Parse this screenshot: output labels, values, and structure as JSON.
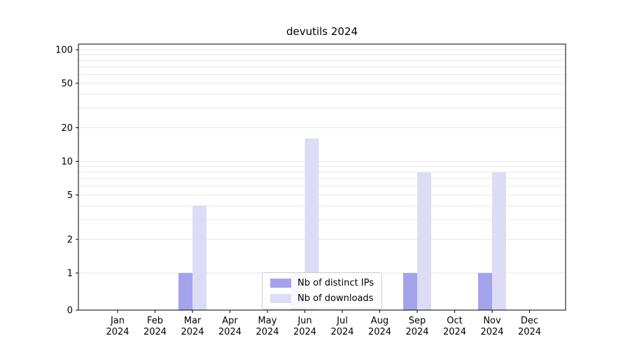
{
  "chart_data": {
    "type": "bar",
    "title": "devutils 2024",
    "categories": [
      "Jan",
      "Feb",
      "Mar",
      "Apr",
      "May",
      "Jun",
      "Jul",
      "Aug",
      "Sep",
      "Oct",
      "Nov",
      "Dec"
    ],
    "year_label": "2024",
    "series": [
      {
        "name": "Nb of distinct IPs",
        "color": "#a3a3ec",
        "values": [
          0,
          0,
          1,
          0,
          0,
          1,
          0,
          0,
          1,
          0,
          1,
          0
        ]
      },
      {
        "name": "Nb of downloads",
        "color": "#dcdcf7",
        "values": [
          0,
          0,
          4,
          0,
          0,
          16,
          0,
          0,
          8,
          0,
          8,
          0
        ]
      }
    ],
    "y_ticks": [
      0,
      1,
      2,
      5,
      10,
      20,
      50,
      100
    ],
    "y_scale": "symlog",
    "ylim": [
      0,
      110
    ],
    "grid": true,
    "legend_position": "lower center",
    "axis_color": "#000000",
    "grid_color": "#e6e6e6"
  }
}
